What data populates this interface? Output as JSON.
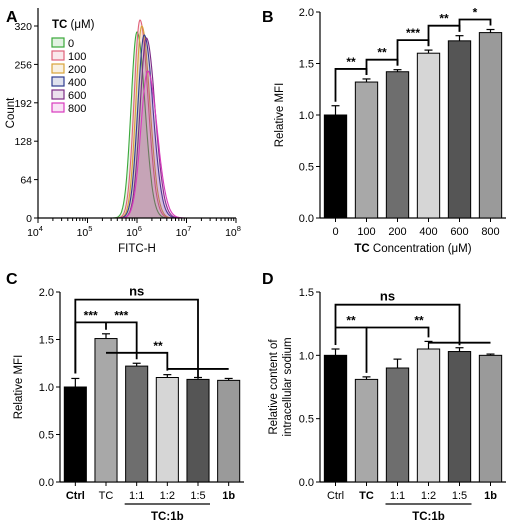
{
  "chart_data": [
    {
      "panel": "A",
      "type": "line",
      "legend_title_bold": "TC",
      "legend_title_unit": "(μM)",
      "legend_placement": "top-left",
      "xlabel": "FITC-H",
      "ylabel": "Count",
      "xscale": "log",
      "xlim": [
        10000,
        100000000
      ],
      "ylim": [
        0,
        350
      ],
      "yticks": [
        0,
        64,
        128,
        192,
        256,
        320
      ],
      "xtick_labels": [
        {
          "base": "10",
          "exp": "4"
        },
        {
          "base": "10",
          "exp": "5"
        },
        {
          "base": "10",
          "exp": "6"
        },
        {
          "base": "10",
          "exp": "7"
        },
        {
          "base": "10",
          "exp": "8"
        }
      ],
      "series": [
        {
          "name": "0",
          "color": "#3aa83a",
          "peak_x": 1000000,
          "peak_y": 310,
          "width": 0.12
        },
        {
          "name": "100",
          "color": "#e0627a",
          "peak_x": 1150000,
          "peak_y": 330,
          "width": 0.12
        },
        {
          "name": "200",
          "color": "#d8a33a",
          "peak_x": 1250000,
          "peak_y": 320,
          "width": 0.12
        },
        {
          "name": "400",
          "color": "#2f3d8f",
          "peak_x": 1400000,
          "peak_y": 305,
          "width": 0.13
        },
        {
          "name": "600",
          "color": "#7d2c86",
          "peak_x": 1550000,
          "peak_y": 300,
          "width": 0.13
        },
        {
          "name": "800",
          "color": "#d83bbd",
          "peak_x": 1650000,
          "peak_y": 245,
          "width": 0.14
        }
      ]
    },
    {
      "panel": "B",
      "type": "bar",
      "categories": [
        "0",
        "100",
        "200",
        "400",
        "600",
        "800"
      ],
      "values": [
        1.0,
        1.32,
        1.42,
        1.6,
        1.72,
        1.8
      ],
      "errors": [
        0.09,
        0.03,
        0.02,
        0.03,
        0.05,
        0.03
      ],
      "colors": [
        "#000000",
        "#a8a8a8",
        "#6e6e6e",
        "#d6d6d6",
        "#555555",
        "#9a9a9a"
      ],
      "xlabel_bold": "TC",
      "xlabel_rest": " Concentration (μM)",
      "ylabel": "Relative MFI",
      "ylim": [
        0,
        2.0
      ],
      "yticks": [
        "0.0",
        "0.5",
        "1.0",
        "1.5",
        "2.0"
      ],
      "significance": [
        {
          "from": 0,
          "to": 1,
          "label": "**"
        },
        {
          "from": 1,
          "to": 2,
          "label": "**"
        },
        {
          "from": 2,
          "to": 3,
          "label": "***"
        },
        {
          "from": 3,
          "to": 4,
          "label": "**"
        },
        {
          "from": 4,
          "to": 5,
          "label": "*"
        }
      ]
    },
    {
      "panel": "C",
      "type": "bar",
      "categories": [
        "Ctrl",
        "TC",
        "1:1",
        "1:2",
        "1:5",
        "1b"
      ],
      "bold_categories": [
        "Ctrl",
        "1b"
      ],
      "values": [
        1.0,
        1.51,
        1.22,
        1.1,
        1.08,
        1.07
      ],
      "errors": [
        0.09,
        0.05,
        0.03,
        0.03,
        0.02,
        0.02
      ],
      "colors": [
        "#000000",
        "#a8a8a8",
        "#6e6e6e",
        "#d6d6d6",
        "#555555",
        "#9a9a9a"
      ],
      "group_label": "TC:1b",
      "ylabel": "Relative MFI",
      "ylim": [
        0.0,
        2.0
      ],
      "yticks": [
        "0.0",
        "0.5",
        "1.0",
        "1.5",
        "2.0"
      ],
      "top_label": "ns",
      "comparison_labels": [
        "***",
        "***",
        "**"
      ]
    },
    {
      "panel": "D",
      "type": "bar",
      "categories": [
        "Ctrl",
        "TC",
        "1:1",
        "1:2",
        "1:5",
        "1b"
      ],
      "bold_categories": [
        "TC",
        "1b"
      ],
      "values": [
        1.0,
        0.81,
        0.9,
        1.05,
        1.03,
        1.0
      ],
      "errors": [
        0.05,
        0.02,
        0.07,
        0.06,
        0.03,
        0.01
      ],
      "colors": [
        "#000000",
        "#a8a8a8",
        "#6e6e6e",
        "#d6d6d6",
        "#555555",
        "#9a9a9a"
      ],
      "group_label": "TC:1b",
      "ylabel_line1": "Relative content of",
      "ylabel_line2": "intracellular sodium",
      "ylim": [
        0.0,
        1.5
      ],
      "yticks": [
        "0.0",
        "0.5",
        "1.0",
        "1.5"
      ],
      "top_label": "ns",
      "comparison_labels": [
        "**",
        "**"
      ]
    }
  ]
}
